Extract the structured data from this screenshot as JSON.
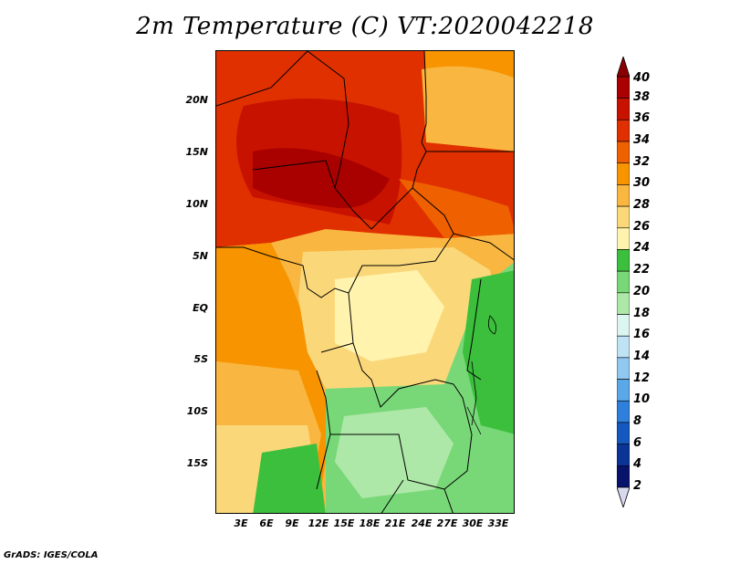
{
  "title": "2m Temperature (C) VT:2020042218",
  "footer": "GrADS: IGES/COLA",
  "y_axis": {
    "ticks": [
      "20N",
      "15N",
      "10N",
      "5N",
      "EQ",
      "5S",
      "10S",
      "15S"
    ],
    "values": [
      20,
      15,
      10,
      5,
      0,
      -5,
      -10,
      -15
    ]
  },
  "x_axis": {
    "ticks": [
      "3E",
      "6E",
      "9E",
      "12E",
      "15E",
      "18E",
      "21E",
      "24E",
      "27E",
      "30E",
      "33E"
    ],
    "values": [
      3,
      6,
      9,
      12,
      15,
      18,
      21,
      24,
      27,
      30,
      33
    ]
  },
  "map_extent": {
    "lon": [
      0.5,
      35
    ],
    "lat": [
      -20,
      25
    ]
  },
  "colorbar": {
    "labels": [
      "40",
      "38",
      "36",
      "34",
      "32",
      "30",
      "28",
      "26",
      "24",
      "22",
      "20",
      "18",
      "16",
      "14",
      "12",
      "10",
      "8",
      "6",
      "4",
      "2"
    ],
    "colors": [
      "#8a0000",
      "#a90000",
      "#c81200",
      "#e03000",
      "#ee6000",
      "#f79400",
      "#f9b640",
      "#fad87a",
      "#fff3ae",
      "#3cbf3c",
      "#78d878",
      "#aee8a8",
      "#dcf5f0",
      "#bfe3f5",
      "#90c8f0",
      "#5aa8e8",
      "#2f80dc",
      "#1458c0",
      "#0a3596",
      "#08146c"
    ],
    "bottom_arrow_color": "#d8d8ee"
  }
}
